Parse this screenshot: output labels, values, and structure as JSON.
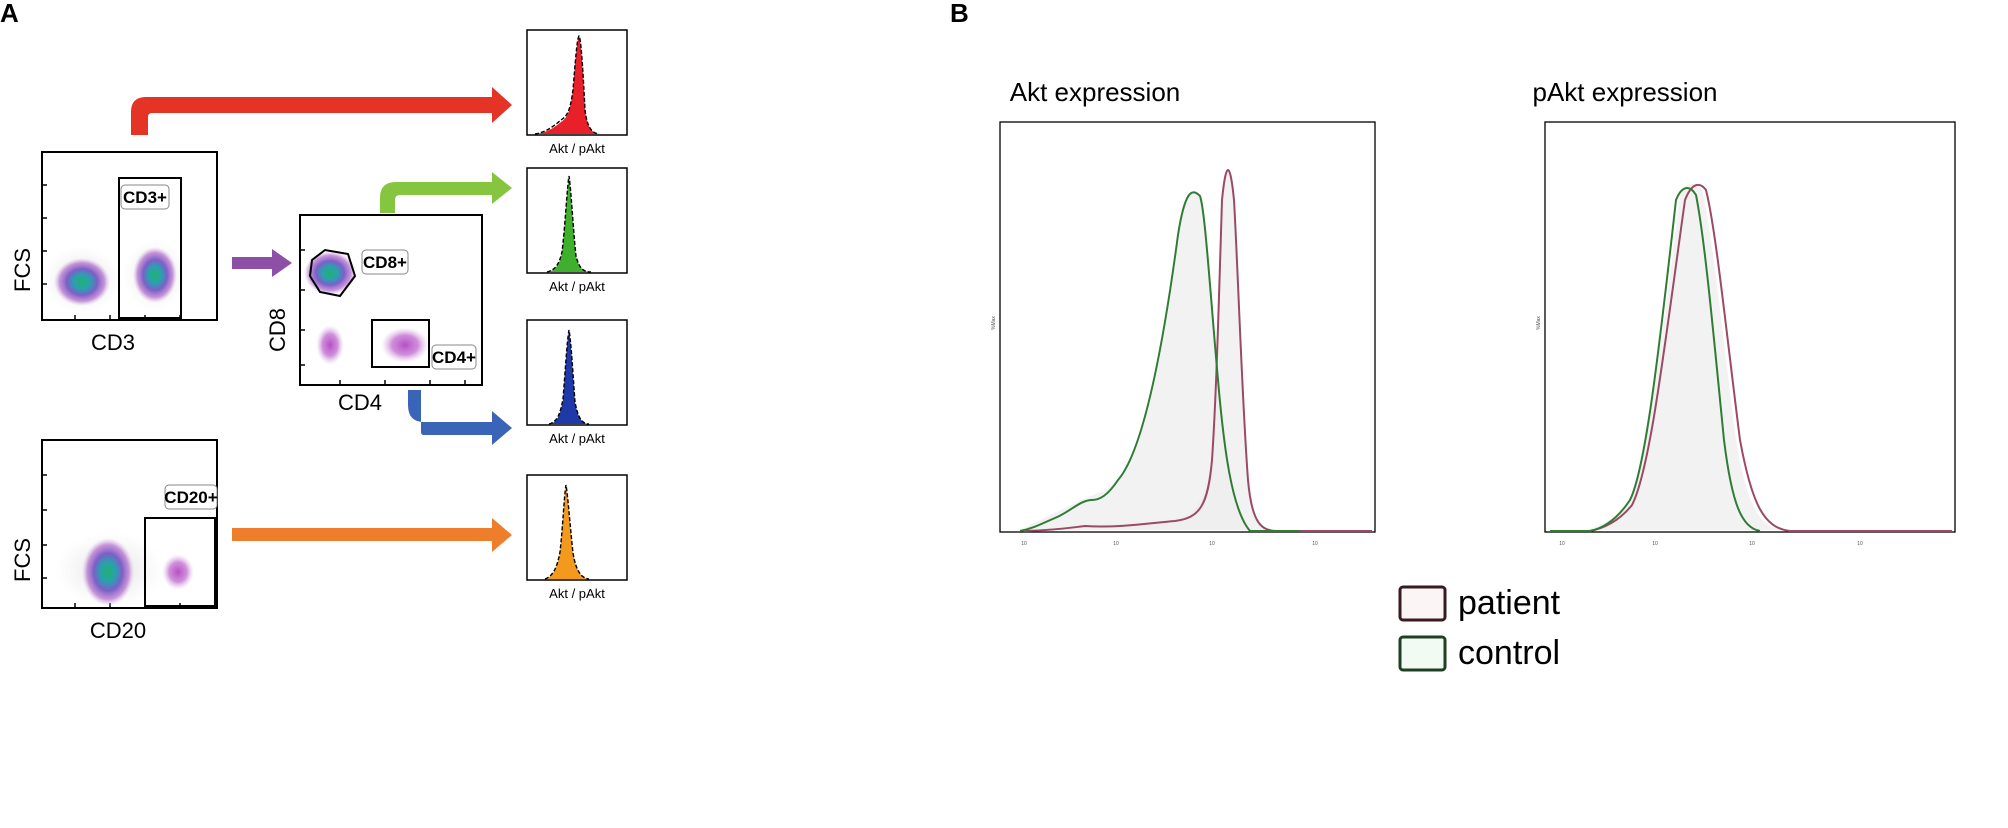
{
  "panelA": {
    "letter": "A",
    "cd3_plot": {
      "x_label": "CD3",
      "y_label": "FCS",
      "gate_label": "CD3+"
    },
    "cd8cd4_plot": {
      "x_label": "CD4",
      "y_label": "CD8",
      "gate_cd8_label": "CD8+",
      "gate_cd4_label": "CD4+"
    },
    "cd20_plot": {
      "x_label": "CD20",
      "y_label": "FCS",
      "gate_label": "CD20+"
    },
    "histograms": [
      {
        "id": "cd3",
        "fill": "#e8202a",
        "x_label": "Akt / pAkt"
      },
      {
        "id": "cd8",
        "fill": "#3fb02d",
        "x_label": "Akt / pAkt"
      },
      {
        "id": "cd4",
        "fill": "#1f3aa8",
        "x_label": "Akt / pAkt"
      },
      {
        "id": "cd20",
        "fill": "#f39a1e",
        "x_label": "Akt / pAkt"
      }
    ],
    "arrows": [
      {
        "id": "cd3-to-hist",
        "color": "#e53325"
      },
      {
        "id": "cd3-to-cd8cd4",
        "color": "#8e4fa6"
      },
      {
        "id": "cd8-to-hist",
        "color": "#86c540"
      },
      {
        "id": "cd4-to-hist",
        "color": "#3a64b8"
      },
      {
        "id": "cd20-to-hist",
        "color": "#ee7e2c"
      }
    ]
  },
  "panelB": {
    "letter": "B",
    "titles": [
      "Akt expression",
      "pAkt expression"
    ],
    "y_axis_tiny_label": "%Max",
    "legend": [
      {
        "label": "patient",
        "color": "#7b3a4a"
      },
      {
        "label": "control",
        "color": "#3b7a3f"
      }
    ],
    "colors": {
      "patient": "#9c4a63",
      "control": "#2f7d34",
      "fill": "#eeeeee"
    }
  }
}
